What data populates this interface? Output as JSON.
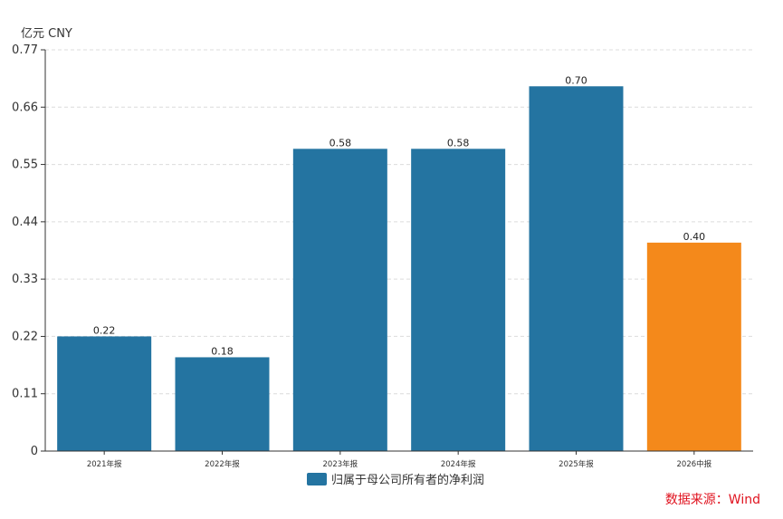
{
  "chart_data": {
    "type": "bar",
    "unit_label": "亿元  CNY",
    "categories": [
      "2021年报",
      "2022年报",
      "2023年报",
      "2024年报",
      "2025年报",
      "2026中报"
    ],
    "values": [
      0.22,
      0.18,
      0.58,
      0.58,
      0.7,
      0.4
    ],
    "data_labels": [
      "0.22",
      "0.18",
      "0.58",
      "0.58",
      "0.70",
      "0.40"
    ],
    "yticks": [
      "0",
      "0.11",
      "0.22",
      "0.33",
      "0.44",
      "0.55",
      "0.66",
      "0.77"
    ],
    "ylim": [
      0,
      0.77
    ],
    "grid": true,
    "legend": {
      "position": "bottom-center",
      "entries": [
        {
          "name": "归属于母公司所有者的净利润",
          "color": "#2474a1"
        }
      ]
    },
    "colors": {
      "default_bar": "#2474a1",
      "highlight_bar": "#f4891b",
      "highlight_index": 5
    }
  },
  "source": "数据来源：Wind"
}
